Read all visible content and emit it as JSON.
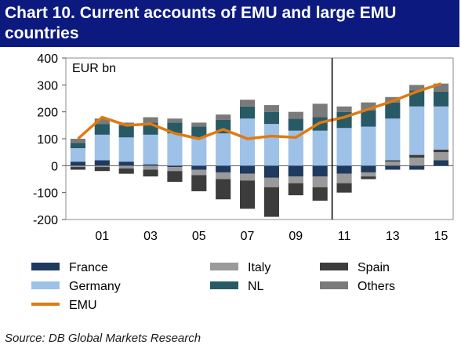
{
  "title_line1": "Chart 10. Current accounts of EMU and large EMU",
  "title_line2": "countries",
  "source": "Source: DB Global Markets Research",
  "colors": {
    "title_bg": "#0c1a80",
    "France": "#1f3a5f",
    "Italy": "#9a9a9a",
    "Spain": "#3c3c3c",
    "Germany": "#9ec1e8",
    "NL": "#285a66",
    "Others": "#7a7a7a",
    "EMU": "#e07a10"
  },
  "chart_data": {
    "type": "bar",
    "stacked": true,
    "unit_label": "EUR bn",
    "ylim": [
      -200,
      400
    ],
    "y_ticks": [
      "400",
      "300",
      "200",
      "100",
      "0",
      "-100",
      "-200"
    ],
    "x_tick_labels": [
      "01",
      "03",
      "05",
      "07",
      "09",
      "11",
      "13",
      "15"
    ],
    "categories": [
      "2000",
      "2001",
      "2002",
      "2003",
      "2004",
      "2005",
      "2006",
      "2007",
      "2008",
      "2009",
      "2010",
      "2011",
      "2012",
      "2013",
      "2014",
      "2015"
    ],
    "vertical_marker_after": "2010",
    "legend_position": "bottom",
    "series": [
      {
        "name": "France",
        "values": [
          15,
          20,
          15,
          5,
          -5,
          -15,
          -25,
          -30,
          -45,
          -40,
          -40,
          -30,
          -25,
          -15,
          -15,
          20
        ]
      },
      {
        "name": "Italy",
        "values": [
          -5,
          -5,
          -10,
          -15,
          -15,
          -20,
          -25,
          -25,
          -35,
          -25,
          -40,
          -35,
          -15,
          15,
          30,
          30
        ]
      },
      {
        "name": "Spain",
        "values": [
          -10,
          -15,
          -20,
          -25,
          -40,
          -60,
          -75,
          -105,
          -110,
          -45,
          -50,
          -35,
          -10,
          5,
          10,
          10
        ]
      },
      {
        "name": "Germany",
        "values": [
          50,
          95,
          90,
          110,
          120,
          105,
          120,
          175,
          155,
          130,
          130,
          140,
          145,
          155,
          180,
          160
        ]
      },
      {
        "name": "NL",
        "values": [
          20,
          40,
          45,
          45,
          40,
          40,
          50,
          45,
          45,
          45,
          50,
          60,
          60,
          60,
          60,
          55
        ]
      },
      {
        "name": "Others",
        "values": [
          15,
          20,
          10,
          20,
          15,
          15,
          20,
          25,
          25,
          25,
          50,
          20,
          30,
          20,
          20,
          30
        ]
      },
      {
        "name": "EMU",
        "type": "line",
        "values": [
          100,
          180,
          150,
          155,
          120,
          100,
          135,
          100,
          110,
          105,
          160,
          180,
          210,
          240,
          275,
          305
        ]
      }
    ]
  }
}
